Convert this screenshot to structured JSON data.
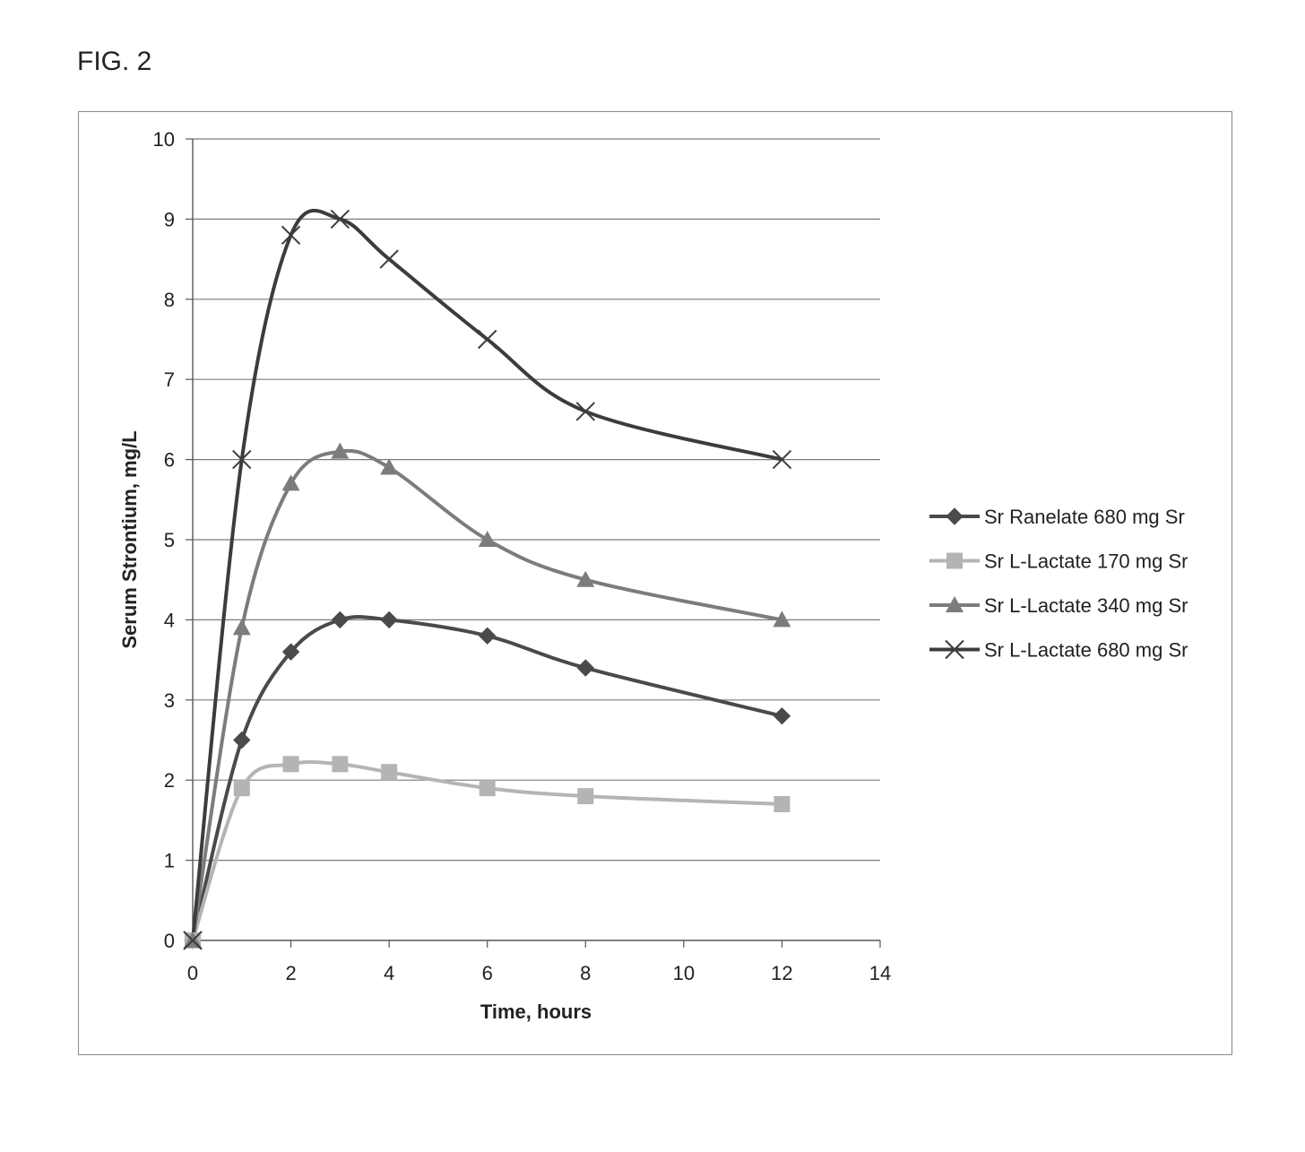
{
  "figure": {
    "label": "FIG. 2"
  },
  "chart_data": {
    "type": "line",
    "title": "",
    "xlabel": "Time, hours",
    "ylabel": "Serum Strontium, mg/L",
    "xlim": [
      0,
      14
    ],
    "ylim": [
      0,
      10
    ],
    "xticks": [
      0,
      2,
      4,
      6,
      8,
      10,
      12,
      14
    ],
    "yticks": [
      0,
      1,
      2,
      3,
      4,
      5,
      6,
      7,
      8,
      9,
      10
    ],
    "grid": true,
    "legend_position": "right",
    "series": [
      {
        "name": "Sr Ranelate 680 mg Sr",
        "marker": "diamond",
        "color": "#4a4a4a",
        "x": [
          0,
          1,
          2,
          3,
          4,
          6,
          8,
          12
        ],
        "y": [
          0,
          2.5,
          3.6,
          4.0,
          4.0,
          3.8,
          3.4,
          2.8
        ]
      },
      {
        "name": "Sr L-Lactate 170 mg Sr",
        "marker": "square",
        "color": "#b4b4b4",
        "x": [
          0,
          1,
          2,
          3,
          4,
          6,
          8,
          12
        ],
        "y": [
          0,
          1.9,
          2.2,
          2.2,
          2.1,
          1.9,
          1.8,
          1.7
        ]
      },
      {
        "name": "Sr L-Lactate 340 mg Sr",
        "marker": "triangle",
        "color": "#7c7c7c",
        "x": [
          0,
          1,
          2,
          3,
          4,
          6,
          8,
          12
        ],
        "y": [
          0,
          3.9,
          5.7,
          6.1,
          5.9,
          5.0,
          4.5,
          4.0
        ]
      },
      {
        "name": "Sr L-Lactate 680 mg Sr",
        "marker": "x",
        "color": "#3c3c3c",
        "x": [
          0,
          1,
          2,
          3,
          4,
          6,
          8,
          12
        ],
        "y": [
          0,
          6.0,
          8.8,
          9.0,
          8.5,
          7.5,
          6.6,
          6.0
        ]
      }
    ]
  }
}
